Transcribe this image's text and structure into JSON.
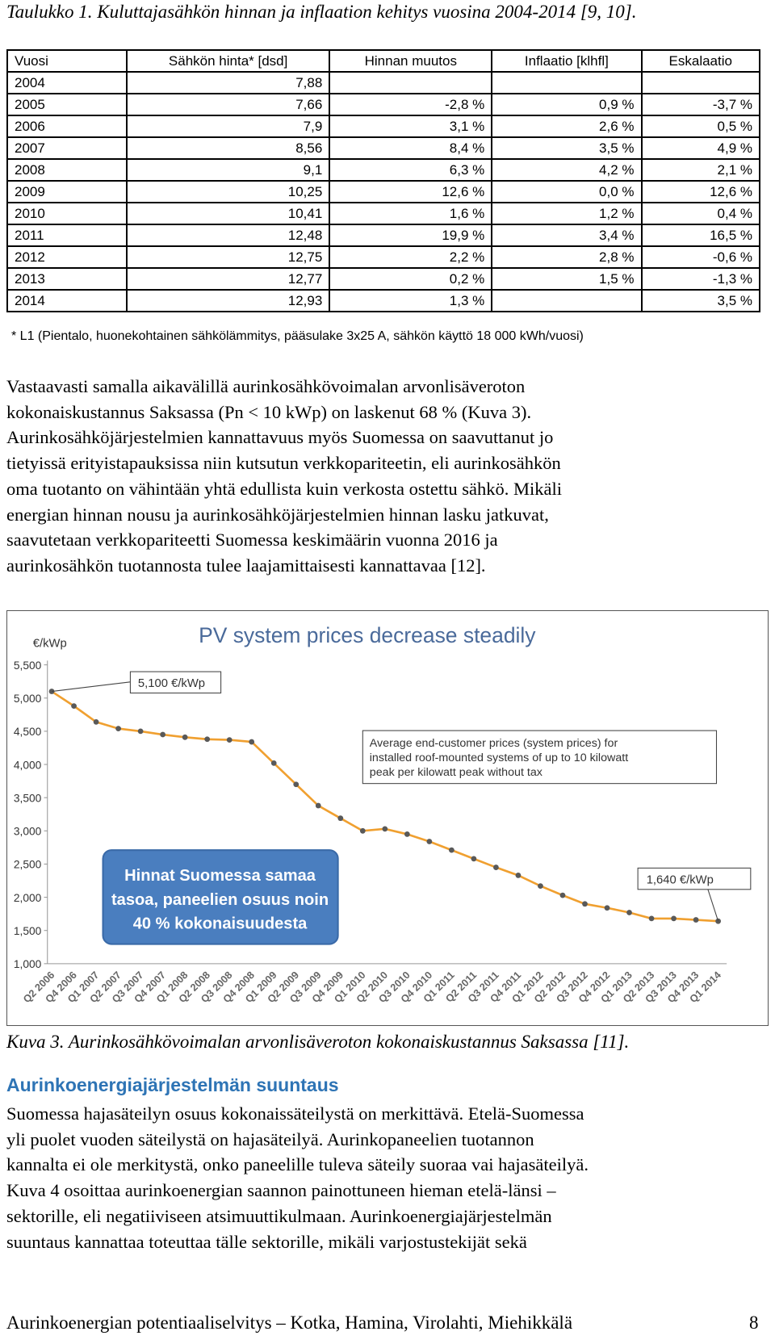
{
  "caption": "Taulukko 1. Kuluttajasähkön hinnan ja inflaation kehitys vuosina 2004-2014 [9, 10].",
  "table": {
    "headers": [
      "Vuosi",
      "Sähkön hinta* [dsd]",
      "Hinnan muutos",
      "Inflaatio [klhfl]",
      "Eskalaatio"
    ],
    "rows": [
      [
        "2004",
        "7,88",
        null,
        null,
        null
      ],
      [
        "2005",
        "7,66",
        "-2,8 %",
        "0,9 %",
        "-3,7 %"
      ],
      [
        "2006",
        "7,9",
        "3,1 %",
        "2,6 %",
        "0,5 %"
      ],
      [
        "2007",
        "8,56",
        "8,4 %",
        "3,5 %",
        "4,9 %"
      ],
      [
        "2008",
        "9,1",
        "6,3 %",
        "4,2 %",
        "2,1 %"
      ],
      [
        "2009",
        "10,25",
        "12,6 %",
        "0,0 %",
        "12,6 %"
      ],
      [
        "2010",
        "10,41",
        "1,6 %",
        "1,2 %",
        "0,4 %"
      ],
      [
        "2011",
        "12,48",
        "19,9 %",
        "3,4 %",
        "16,5 %"
      ],
      [
        "2012",
        "12,75",
        "2,2 %",
        "2,8 %",
        "-0,6 %"
      ],
      [
        "2013",
        "12,77",
        "0,2 %",
        "1,5 %",
        "-1,3 %"
      ],
      [
        "2014",
        "12,93",
        "1,3 %",
        null,
        "3,5 %"
      ]
    ]
  },
  "footnote": "* L1 (Pientalo, huonekohtainen sähkölämmitys, pääsulake 3x25 A, sähkön käyttö 18 000 kWh/vuosi)",
  "paragraph1": [
    "Vastaavasti samalla aikavälillä aurinkosähkövoimalan arvonlisäveroton",
    "kokonaiskustannus Saksassa (Pn < 10 kWp) on laskenut 68 % (Kuva 3).",
    "Aurinkosähköjärjestelmien kannattavuus myös Suomessa on saavuttanut jo",
    "tietyissä erityistapauksissa niin kutsutun verkkopariteetin, eli aurinkosähkön",
    "oma tuotanto on vähintään yhtä edullista kuin verkosta ostettu sähkö. Mikäli",
    "energian hinnan nousu ja aurinkosähköjärjestelmien hinnan lasku jatkuvat,",
    "saavutetaan verkkopariteetti Suomessa keskimäärin vuonna 2016 ja",
    "aurinkosähkön tuotannosta tulee laajamittaisesti kannattavaa [12]."
  ],
  "chart_data": {
    "type": "line",
    "title": "PV system prices decrease steadily",
    "y_label": "€/kWp",
    "categories": [
      "Q2 2006",
      "Q4 2006",
      "Q1 2007",
      "Q2 2007",
      "Q3 2007",
      "Q4 2007",
      "Q1 2008",
      "Q2 2008",
      "Q3 2008",
      "Q4 2008",
      "Q1 2009",
      "Q2 2009",
      "Q3 2009",
      "Q4 2009",
      "Q1 2010",
      "Q2 2010",
      "Q3 2010",
      "Q4 2010",
      "Q1 2011",
      "Q2 2011",
      "Q3 2011",
      "Q4 2011",
      "Q1 2012",
      "Q2 2012",
      "Q3 2012",
      "Q4 2012",
      "Q1 2013",
      "Q2 2013",
      "Q3 2013",
      "Q4 2013",
      "Q1 2014"
    ],
    "values": [
      5100,
      4880,
      4640,
      4540,
      4500,
      4450,
      4410,
      4380,
      4370,
      4340,
      4020,
      3700,
      3380,
      3190,
      3000,
      3030,
      2950,
      2840,
      2710,
      2580,
      2450,
      2330,
      2170,
      2030,
      1900,
      1840,
      1770,
      1680,
      1680,
      1660,
      1640
    ],
    "color": "#f0a030",
    "marker_color": "#595959",
    "ylim": [
      1000,
      5500
    ],
    "yticks": [
      {
        "value": 1000,
        "label": "1,000"
      },
      {
        "value": 1500,
        "label": "1,500"
      },
      {
        "value": 2000,
        "label": "2,000"
      },
      {
        "value": 2500,
        "label": "2,500"
      },
      {
        "value": 3000,
        "label": "3,000"
      },
      {
        "value": 3500,
        "label": "3,500"
      },
      {
        "value": 4000,
        "label": "4,000"
      },
      {
        "value": 4500,
        "label": "4,500"
      },
      {
        "value": 5000,
        "label": "5,000"
      },
      {
        "value": 5500,
        "label": "5,500"
      }
    ],
    "grid": false,
    "start_label": "5,100 €/kWp",
    "end_label": "1,640 €/kWp",
    "note": [
      "Average end-customer prices (system prices) for",
      "installed roof-mounted systems of up to 10 kilowatt",
      "peak per kilowatt peak without tax"
    ],
    "callout": [
      "Hinnat Suomessa samaa",
      "tasoa, paneelien osuus noin",
      "40 % kokonaisuudesta"
    ]
  },
  "figure_caption": "Kuva 3. Aurinkosähkövoimalan arvonlisäveroton kokonaiskustannus Saksassa [11].",
  "section_heading": "Aurinkoenergiajärjestelmän suuntaus",
  "paragraph2": [
    "Suomessa hajasäteilyn osuus kokonaissäteilystä on merkittävä. Etelä-Suomessa",
    "yli puolet vuoden säteilystä on hajasäteilyä. Aurinkopaneelien tuotannon",
    "kannalta ei ole merkitystä, onko paneelille tuleva säteily suoraa vai hajasäteilyä.",
    "Kuva 4 osoittaa aurinkoenergian saannon painottuneen hieman etelä-länsi –",
    "sektorille, eli negatiiviseen atsimuuttikulmaan. Aurinkoenergiajärjestelmän",
    "suuntaus kannattaa toteuttaa tälle sektorille, mikäli varjostustekijät sekä"
  ],
  "footer": {
    "text": "Aurinkoenergian potentiaaliselvitys – Kotka, Hamina, Virolahti, Miehikkälä",
    "page_number": "8"
  }
}
